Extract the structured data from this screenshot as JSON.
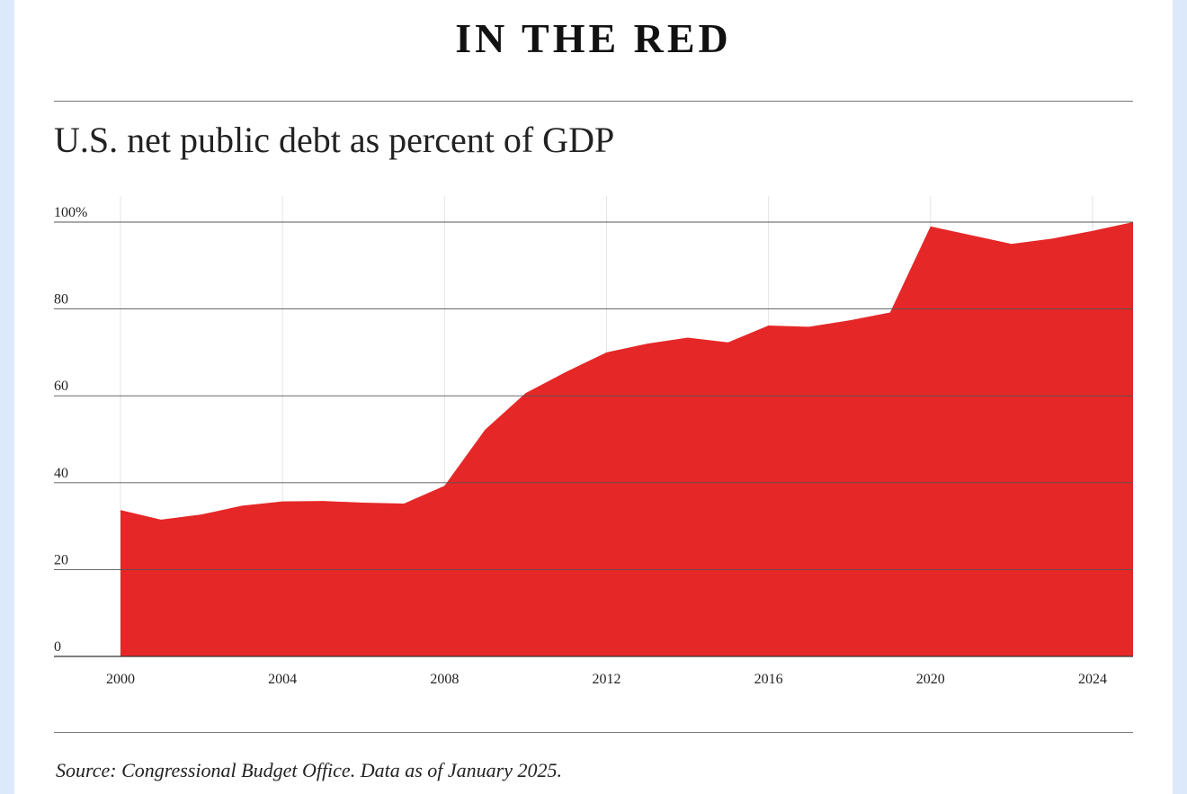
{
  "header": {
    "headline": "IN THE RED",
    "subtitle": "U.S. net public debt as percent of GDP"
  },
  "footer": {
    "source": "Source: Congressional Budget Office. Data as of January 2025."
  },
  "colors": {
    "area": "#e62727",
    "page_background": "#dbe9fa",
    "card_background": "#ffffff"
  },
  "chart_data": {
    "type": "area",
    "title": "U.S. net public debt as percent of GDP",
    "xlabel": "",
    "ylabel": "",
    "x": [
      2000,
      2001,
      2002,
      2003,
      2004,
      2005,
      2006,
      2007,
      2008,
      2009,
      2010,
      2011,
      2012,
      2013,
      2014,
      2015,
      2016,
      2017,
      2018,
      2019,
      2020,
      2021,
      2022,
      2023,
      2024,
      2025
    ],
    "series": [
      {
        "values": [
          33.7,
          31.5,
          32.7,
          34.7,
          35.7,
          35.8,
          35.4,
          35.2,
          39.3,
          52.2,
          60.6,
          65.5,
          70.0,
          72.0,
          73.4,
          72.3,
          76.2,
          75.9,
          77.4,
          79.2,
          99.0,
          97.0,
          95.0,
          96.2,
          98.0,
          100.0
        ]
      }
    ],
    "ylim": [
      0,
      100
    ],
    "xlim": [
      2000,
      2025
    ],
    "y_ticks": [
      "0",
      "20",
      "40",
      "60",
      "80",
      "100%"
    ],
    "y_tick_values": [
      0,
      20,
      40,
      60,
      80,
      100
    ],
    "x_ticks": [
      "2000",
      "2004",
      "2008",
      "2012",
      "2016",
      "2020",
      "2024"
    ],
    "x_tick_values": [
      2000,
      2004,
      2008,
      2012,
      2016,
      2020,
      2024
    ],
    "grid": true,
    "legend": "none"
  }
}
